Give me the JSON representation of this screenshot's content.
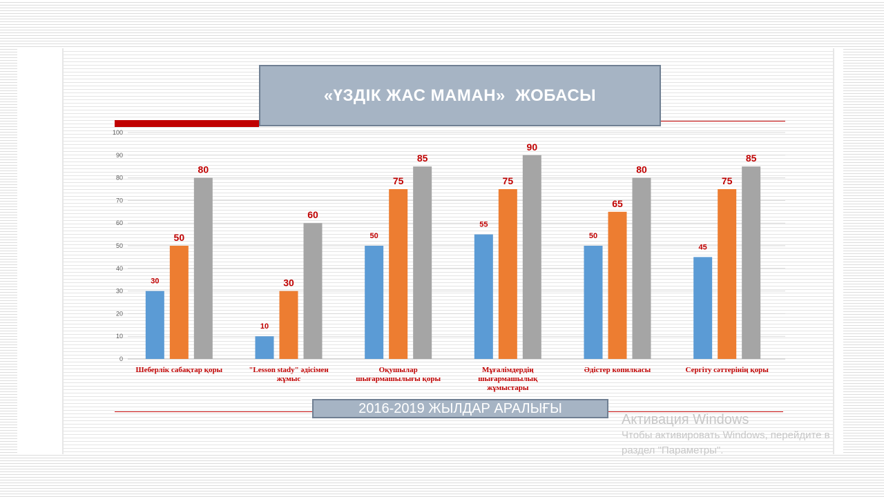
{
  "slide": {
    "title": "«ҮЗДІК ЖАС МАМАН»  ЖОБАСЫ",
    "period": "2016-2019 ЖЫЛДАР АРАЛЫҒЫ"
  },
  "watermark": {
    "title": "Активация Windows",
    "line1": "Чтобы активировать Windows, перейдите в",
    "line2": "раздел \"Параметры\"."
  },
  "colors": {
    "series": [
      "#5b9bd5",
      "#ed7d31",
      "#a5a5a5"
    ],
    "data_labels": "#c00000",
    "category_labels": "#c00000",
    "title_box": "#a6b4c4",
    "accent_red": "#c00000"
  },
  "chart_data": {
    "type": "bar",
    "title": "«ҮЗДІК ЖАС МАМАН»  ЖОБАСЫ",
    "xlabel": "2016-2019 ЖЫЛДАР АРАЛЫҒЫ",
    "ylabel": "",
    "ylim": [
      0,
      100
    ],
    "yticks": [
      0,
      10,
      20,
      30,
      40,
      50,
      60,
      70,
      80,
      90,
      100
    ],
    "grid": true,
    "legend": "none",
    "categories": [
      [
        "Шеберлік сабақтар қоры"
      ],
      [
        "\"Lesson stady\" әдісімен",
        "жұмыс"
      ],
      [
        "Оқушылар",
        "шығармашылығы қоры"
      ],
      [
        "Мұғалімдердің",
        "шығармашылық",
        "жұмыстары"
      ],
      [
        "Әдістер копилкасы"
      ],
      [
        "Сергіту сәттерінің   қоры"
      ]
    ],
    "series": [
      {
        "values": [
          30,
          10,
          50,
          55,
          50,
          45
        ]
      },
      {
        "values": [
          50,
          30,
          75,
          75,
          65,
          75
        ]
      },
      {
        "values": [
          80,
          60,
          85,
          90,
          80,
          85
        ]
      }
    ]
  }
}
